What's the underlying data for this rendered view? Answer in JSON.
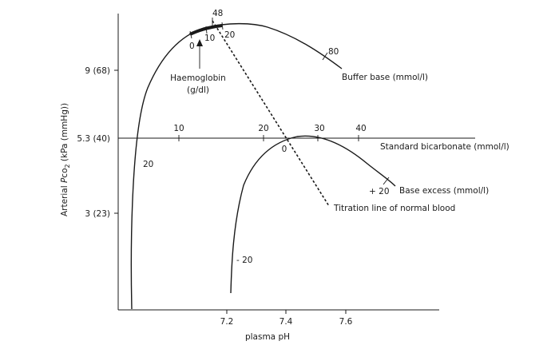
{
  "diagram": {
    "y_axis": {
      "title_pre": "Arterial ",
      "title_italic": "P",
      "title_co": "co",
      "title_sub": "2",
      "title_post": " (kPa (mmHg))",
      "ticks": [
        "9 (68)",
        "5.3 (40)",
        "3 (23)"
      ]
    },
    "x_axis": {
      "title": "plasma pH",
      "ticks": [
        "7.2",
        "7.4",
        "7.6"
      ]
    },
    "standard_bicarbonate": {
      "label": "Standard bicarbonate (mmol/l)",
      "ticks": [
        "10",
        "20",
        "30",
        "40"
      ]
    },
    "buffer_base": {
      "label": "Buffer base (mmol/l)",
      "value_label": "80",
      "top_label": "48"
    },
    "haemoglobin": {
      "label_line1": "Haemoglobin",
      "label_line2": "(g/dl)",
      "ticks": [
        "0",
        "10",
        "20"
      ]
    },
    "base_excess": {
      "label": "Base excess (mmol/l)",
      "plus_label": "+ 20",
      "zero_label": "0",
      "minus_label": "- 20",
      "left_label": "20"
    },
    "titration_line": {
      "label": "Titration line of normal blood"
    }
  }
}
